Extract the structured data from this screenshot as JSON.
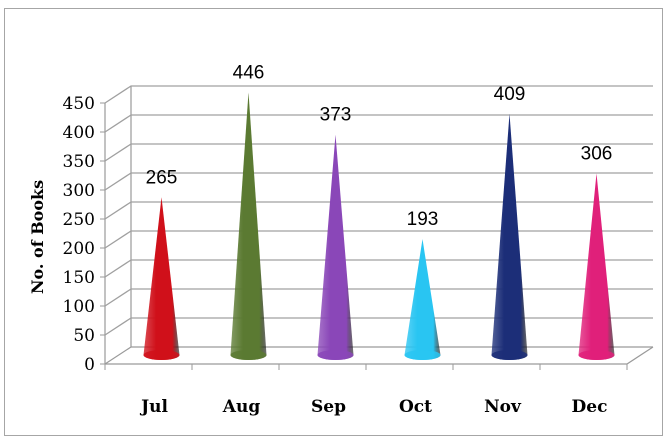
{
  "chart_data": {
    "type": "bar",
    "categories": [
      "Jul",
      "Aug",
      "Sep",
      "Oct",
      "Nov",
      "Dec"
    ],
    "values": [
      265,
      446,
      373,
      193,
      409,
      306
    ],
    "title": "",
    "xlabel": "",
    "ylabel": "No. of Books",
    "ylim": [
      0,
      450
    ],
    "yticks": [
      0,
      50,
      100,
      150,
      200,
      250,
      300,
      350,
      400,
      450
    ],
    "grid": true,
    "legend": "none",
    "colors": [
      "#d0101a",
      "#5b7a32",
      "#8a47b8",
      "#29c5f2",
      "#1c2e78",
      "#e0207a"
    ]
  }
}
